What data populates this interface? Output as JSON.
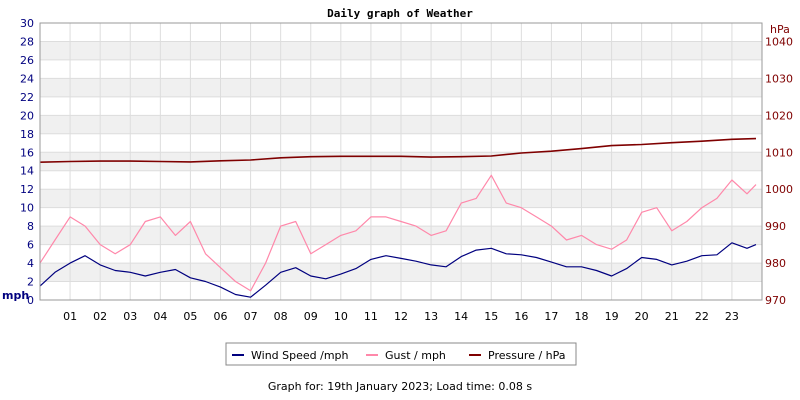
{
  "chart_data": {
    "type": "line",
    "title": "Daily graph of Weather",
    "y_left": {
      "label": "mph",
      "range": [
        0,
        30
      ],
      "ticks": [
        0,
        2,
        4,
        6,
        8,
        10,
        12,
        14,
        16,
        18,
        20,
        22,
        24,
        26,
        28,
        30
      ]
    },
    "y_right": {
      "label": "hPa",
      "range": [
        970,
        1045
      ],
      "ticks": [
        970,
        980,
        990,
        1000,
        1010,
        1020,
        1030,
        1040
      ]
    },
    "x_ticks": [
      "01",
      "02",
      "03",
      "04",
      "05",
      "06",
      "07",
      "08",
      "09",
      "10",
      "11",
      "12",
      "13",
      "14",
      "15",
      "16",
      "17",
      "18",
      "19",
      "20",
      "21",
      "22",
      "23"
    ],
    "grid": true,
    "legend_position": "bottom",
    "series": [
      {
        "name": "Wind Speed /mph",
        "axis": "left",
        "color": "#00007f",
        "x": [
          0.0,
          0.5,
          1.0,
          1.5,
          2.0,
          2.5,
          3.0,
          3.5,
          4.0,
          4.5,
          5.0,
          5.5,
          6.0,
          6.5,
          7.0,
          7.5,
          8.0,
          8.5,
          9.0,
          9.5,
          10.0,
          10.5,
          11.0,
          11.5,
          12.0,
          12.5,
          13.0,
          13.5,
          14.0,
          14.5,
          15.0,
          15.5,
          16.0,
          16.5,
          17.0,
          17.5,
          18.0,
          18.5,
          19.0,
          19.5,
          20.0,
          20.5,
          21.0,
          21.5,
          22.0,
          22.5,
          23.0,
          23.5,
          23.8
        ],
        "values": [
          1.5,
          3.0,
          4.0,
          4.8,
          3.8,
          3.2,
          3.0,
          2.6,
          3.0,
          3.3,
          2.4,
          2.0,
          1.4,
          0.6,
          0.3,
          1.6,
          3.0,
          3.5,
          2.6,
          2.3,
          2.8,
          3.4,
          4.4,
          4.8,
          4.5,
          4.2,
          3.8,
          3.6,
          4.7,
          5.4,
          5.6,
          5.0,
          4.9,
          4.6,
          4.1,
          3.6,
          3.6,
          3.2,
          2.6,
          3.4,
          4.6,
          4.4,
          3.8,
          4.2,
          4.8,
          4.9,
          6.2,
          5.6,
          6.0
        ]
      },
      {
        "name": "Gust / mph",
        "axis": "left",
        "color": "#ff88aa",
        "x": [
          0.0,
          0.5,
          1.0,
          1.5,
          2.0,
          2.5,
          3.0,
          3.5,
          4.0,
          4.5,
          5.0,
          5.5,
          6.0,
          6.5,
          7.0,
          7.5,
          8.0,
          8.5,
          9.0,
          9.5,
          10.0,
          10.5,
          11.0,
          11.5,
          12.0,
          12.5,
          13.0,
          13.5,
          14.0,
          14.5,
          15.0,
          15.5,
          16.0,
          16.5,
          17.0,
          17.5,
          18.0,
          18.5,
          19.0,
          19.5,
          20.0,
          20.5,
          21.0,
          21.5,
          22.0,
          22.5,
          23.0,
          23.5,
          23.8
        ],
        "values": [
          4.0,
          6.5,
          9.0,
          8.0,
          6.0,
          5.0,
          6.0,
          8.5,
          9.0,
          7.0,
          8.5,
          5.0,
          3.5,
          2.0,
          1.0,
          4.0,
          8.0,
          8.5,
          5.0,
          6.0,
          7.0,
          7.5,
          9.0,
          9.0,
          8.5,
          8.0,
          7.0,
          7.5,
          10.5,
          11.0,
          13.5,
          10.5,
          10.0,
          9.0,
          8.0,
          6.5,
          7.0,
          6.0,
          5.5,
          6.5,
          9.5,
          10.0,
          7.5,
          8.5,
          10.0,
          11.0,
          13.0,
          11.5,
          12.5
        ]
      },
      {
        "name": "Pressure / hPa",
        "axis": "right",
        "color": "#7f0000",
        "x": [
          0.0,
          1.0,
          2.0,
          3.0,
          4.0,
          5.0,
          6.0,
          7.0,
          8.0,
          9.0,
          10.0,
          11.0,
          12.0,
          13.0,
          14.0,
          15.0,
          16.0,
          17.0,
          18.0,
          19.0,
          20.0,
          21.0,
          22.0,
          23.0,
          23.8
        ],
        "values": [
          1007.3,
          1007.5,
          1007.6,
          1007.6,
          1007.5,
          1007.4,
          1007.7,
          1007.9,
          1008.5,
          1008.8,
          1008.9,
          1008.9,
          1008.9,
          1008.7,
          1008.8,
          1009.0,
          1009.8,
          1010.3,
          1011.0,
          1011.8,
          1012.1,
          1012.6,
          1013.0,
          1013.5,
          1013.7
        ]
      }
    ]
  },
  "footer": {
    "text": "Graph for: 19th January 2023; Load time: 0.08 s"
  }
}
